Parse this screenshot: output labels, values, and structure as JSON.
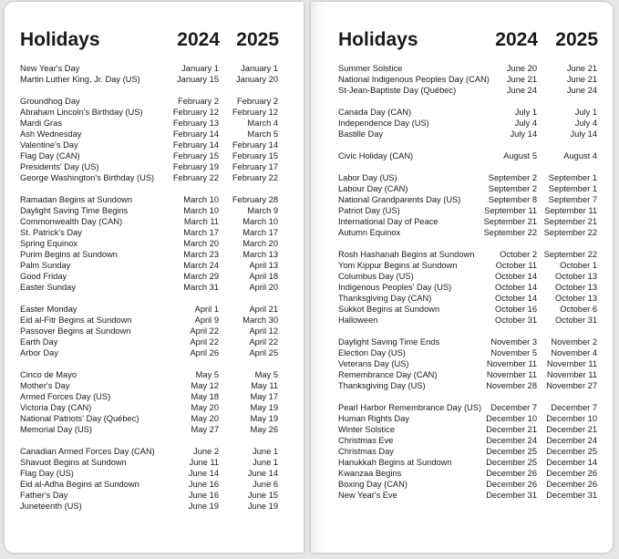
{
  "pages": [
    {
      "title": "Holidays",
      "years": [
        "2024",
        "2025"
      ],
      "groups": [
        [
          [
            "New Year's Day",
            "January 1",
            "January 1"
          ],
          [
            "Martin Luther King, Jr. Day (US)",
            "January 15",
            "January 20"
          ]
        ],
        [
          [
            "Groundhog Day",
            "February 2",
            "February 2"
          ],
          [
            "Abraham Lincoln's Birthday (US)",
            "February 12",
            "February 12"
          ],
          [
            "Mardi Gras",
            "February 13",
            "March 4"
          ],
          [
            "Ash Wednesday",
            "February 14",
            "March 5"
          ],
          [
            "Valentine's Day",
            "February 14",
            "February 14"
          ],
          [
            "Flag Day (CAN)",
            "February 15",
            "February 15"
          ],
          [
            "Presidents' Day (US)",
            "February 19",
            "February 17"
          ],
          [
            "George Washington's Birthday (US)",
            "February 22",
            "February 22"
          ]
        ],
        [
          [
            "Ramadan Begins at Sundown",
            "March 10",
            "February 28"
          ],
          [
            "Daylight Saving Time Begins",
            "March 10",
            "March 9"
          ],
          [
            "Commonwealth Day (CAN)",
            "March 11",
            "March 10"
          ],
          [
            "St. Patrick's Day",
            "March 17",
            "March 17"
          ],
          [
            "Spring Equinox",
            "March 20",
            "March 20"
          ],
          [
            "Purim Begins at Sundown",
            "March 23",
            "March 13"
          ],
          [
            "Palm Sunday",
            "March 24",
            "April 13"
          ],
          [
            "Good Friday",
            "March 29",
            "April 18"
          ],
          [
            "Easter Sunday",
            "March 31",
            "April 20"
          ]
        ],
        [
          [
            "Easter Monday",
            "April 1",
            "April 21"
          ],
          [
            "Eid al-Fitr Begins at Sundown",
            "April 9",
            "March 30"
          ],
          [
            "Passover Begins at Sundown",
            "April 22",
            "April 12"
          ],
          [
            "Earth Day",
            "April 22",
            "April 22"
          ],
          [
            "Arbor Day",
            "April 26",
            "April 25"
          ]
        ],
        [
          [
            "Cinco de Mayo",
            "May 5",
            "May 5"
          ],
          [
            "Mother's Day",
            "May 12",
            "May 11"
          ],
          [
            "Armed Forces Day (US)",
            "May 18",
            "May 17"
          ],
          [
            "Victoria Day (CAN)",
            "May 20",
            "May 19"
          ],
          [
            "National Patriots' Day (Québec)",
            "May 20",
            "May 19"
          ],
          [
            "Memorial Day (US)",
            "May 27",
            "May 26"
          ]
        ],
        [
          [
            "Canadian Armed Forces Day (CAN)",
            "June 2",
            "June 1"
          ],
          [
            "Shavuot Begins at Sundown",
            "June 11",
            "June 1"
          ],
          [
            "Flag Day (US)",
            "June 14",
            "June 14"
          ],
          [
            "Eid al-Adha Begins at Sundown",
            "June 16",
            "June 6"
          ],
          [
            "Father's Day",
            "June 16",
            "June 15"
          ],
          [
            "Juneteenth (US)",
            "June 19",
            "June 19"
          ]
        ]
      ]
    },
    {
      "title": "Holidays",
      "years": [
        "2024",
        "2025"
      ],
      "groups": [
        [
          [
            "Summer Solstice",
            "June 20",
            "June 21"
          ],
          [
            "National Indigenous Peoples Day (CAN)",
            "June 21",
            "June 21"
          ],
          [
            "St-Jean-Baptiste Day (Québec)",
            "June 24",
            "June 24"
          ]
        ],
        [
          [
            "Canada Day (CAN)",
            "July 1",
            "July 1"
          ],
          [
            "Independence Day (US)",
            "July 4",
            "July 4"
          ],
          [
            "Bastille Day",
            "July 14",
            "July 14"
          ]
        ],
        [
          [
            "Civic Holiday (CAN)",
            "August 5",
            "August 4"
          ]
        ],
        [
          [
            "Labor Day (US)",
            "September 2",
            "September 1"
          ],
          [
            "Labour Day (CAN)",
            "September 2",
            "September 1"
          ],
          [
            "National Grandparents Day (US)",
            "September 8",
            "September 7"
          ],
          [
            "Patriot Day (US)",
            "September 11",
            "September 11"
          ],
          [
            "International Day of Peace",
            "September 21",
            "September 21"
          ],
          [
            "Autumn Equinox",
            "September 22",
            "September 22"
          ]
        ],
        [
          [
            "Rosh Hashanah Begins at Sundown",
            "October 2",
            "September 22"
          ],
          [
            "Yom Kippur Begins at Sundown",
            "October 11",
            "October 1"
          ],
          [
            "Columbus Day (US)",
            "October 14",
            "October 13"
          ],
          [
            "Indigenous Peoples' Day (US)",
            "October 14",
            "October 13"
          ],
          [
            "Thanksgiving Day (CAN)",
            "October 14",
            "October 13"
          ],
          [
            "Sukkot Begins at Sundown",
            "October 16",
            "October 6"
          ],
          [
            "Halloween",
            "October 31",
            "October 31"
          ]
        ],
        [
          [
            "Daylight Saving Time Ends",
            "November 3",
            "November 2"
          ],
          [
            "Election Day (US)",
            "November 5",
            "November 4"
          ],
          [
            "Veterans Day (US)",
            "November 11",
            "November 11"
          ],
          [
            "Remembrance Day (CAN)",
            "November 11",
            "November 11"
          ],
          [
            "Thanksgiving Day (US)",
            "November 28",
            "November 27"
          ]
        ],
        [
          [
            "Pearl Harbor Remembrance Day (US)",
            "December 7",
            "December 7"
          ],
          [
            "Human Rights Day",
            "December 10",
            "December 10"
          ],
          [
            "Winter Solstice",
            "December 21",
            "December 21"
          ],
          [
            "Christmas Eve",
            "December 24",
            "December 24"
          ],
          [
            "Christmas Day",
            "December 25",
            "December 25"
          ],
          [
            "Hanukkah Begins at Sundown",
            "December 25",
            "December 14"
          ],
          [
            "Kwanzaa Begins",
            "December 26",
            "December 26"
          ],
          [
            "Boxing Day (CAN)",
            "December 26",
            "December 26"
          ],
          [
            "New Year's Eve",
            "December 31",
            "December 31"
          ]
        ]
      ]
    }
  ]
}
